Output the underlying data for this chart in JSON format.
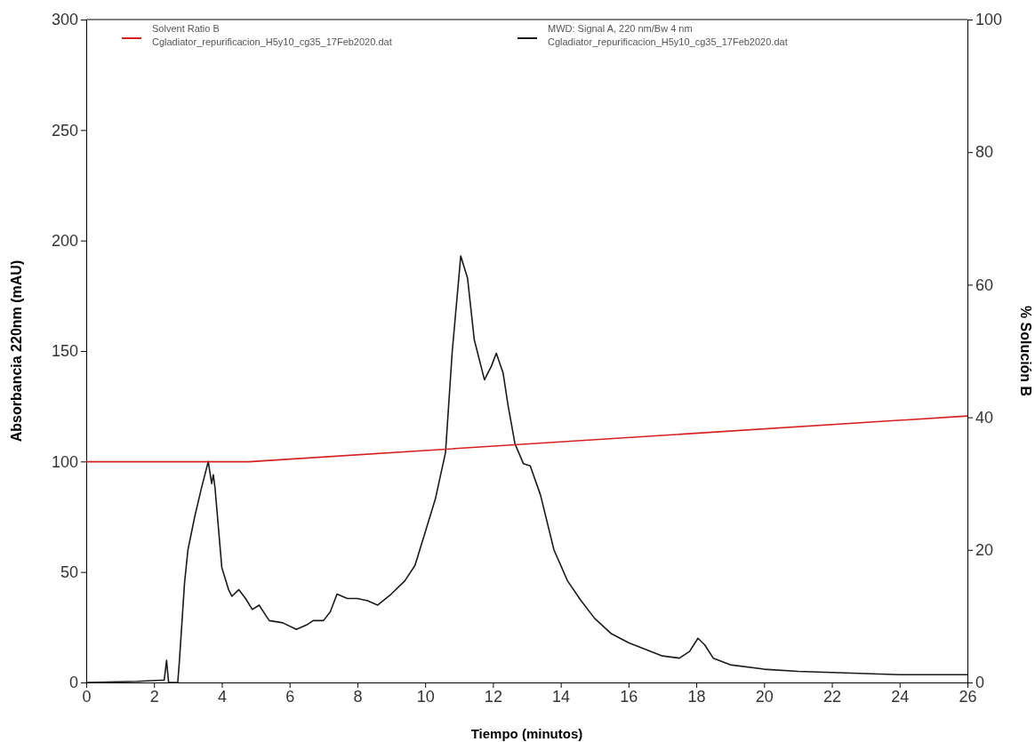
{
  "chart_data": {
    "type": "line",
    "xlabel": "Tiempo (minutos)",
    "ylabel": "Absorbancia 220nm (mAU)",
    "y2label": "% Solución B",
    "xlim": [
      0,
      26
    ],
    "xticks": [
      0,
      2,
      4,
      6,
      8,
      10,
      12,
      14,
      16,
      18,
      20,
      22,
      24,
      26
    ],
    "ylim": [
      0,
      300
    ],
    "yticks": [
      0,
      50,
      100,
      150,
      200,
      250,
      300
    ],
    "y2lim": [
      0,
      100
    ],
    "y2ticks": [
      0,
      20,
      40,
      60,
      80,
      100
    ],
    "legend": "top",
    "grid": false,
    "marker": "none",
    "line_style": "solid",
    "series": [
      {
        "name": "Solvent Ratio B\nCgladiator_repurificacion_H5y10_cg35_17Feb2020.dat",
        "color": "#d42020",
        "axis": "y2",
        "x": [
          0,
          4.8,
          26
        ],
        "values": [
          33.3,
          33.3,
          40.2
        ]
      },
      {
        "name": "MWD: Signal A, 220 nm/Bw 4 nm\nCgladiator_repurificacion_H5y10_cg35_17Feb2020.dat",
        "color": "#1a1a1a",
        "axis": "y",
        "x": [
          0,
          1.5,
          2.2,
          2.3,
          2.37,
          2.43,
          2.7,
          2.75,
          2.9,
          3.0,
          3.2,
          3.4,
          3.6,
          3.7,
          3.75,
          3.8,
          3.9,
          4.0,
          4.2,
          4.3,
          4.5,
          4.7,
          4.9,
          5.1,
          5.4,
          5.8,
          6.2,
          6.5,
          6.7,
          7.0,
          7.2,
          7.4,
          7.7,
          8.0,
          8.3,
          8.6,
          9.0,
          9.4,
          9.7,
          10.0,
          10.3,
          10.6,
          10.8,
          11.05,
          11.25,
          11.45,
          11.75,
          11.95,
          12.1,
          12.3,
          12.45,
          12.65,
          12.9,
          13.1,
          13.4,
          13.8,
          14.2,
          14.6,
          15.0,
          15.5,
          16.0,
          16.5,
          17.0,
          17.5,
          17.8,
          18.05,
          18.25,
          18.5,
          19,
          20,
          21,
          22,
          23,
          24,
          26
        ],
        "values": [
          0,
          0.5,
          1,
          1,
          10,
          0,
          0,
          10,
          45,
          60,
          75,
          88,
          100,
          90,
          94,
          88,
          70,
          52,
          42,
          39,
          42,
          38,
          33,
          35,
          28,
          27,
          24,
          26,
          28,
          28,
          32,
          40,
          38,
          38,
          37,
          35,
          40,
          46,
          53,
          68,
          83,
          104,
          150,
          193,
          183,
          155,
          137,
          143,
          149,
          140,
          125,
          108,
          99,
          98,
          85,
          60,
          46,
          37,
          29,
          22,
          18,
          15,
          12,
          11,
          14,
          20,
          17,
          11,
          8,
          6,
          5,
          4.5,
          4,
          3.5,
          3.5
        ]
      }
    ]
  }
}
